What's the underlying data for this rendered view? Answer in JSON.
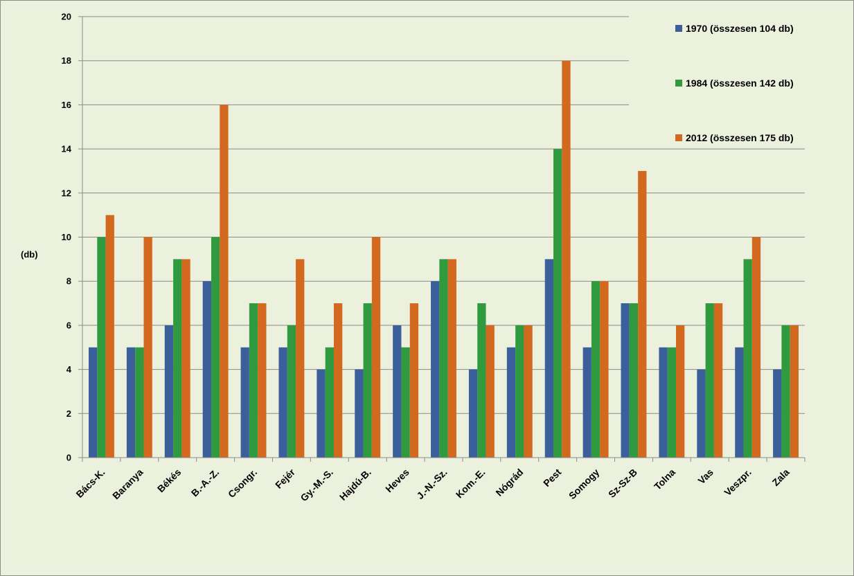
{
  "chart_data": {
    "type": "bar",
    "ylabel": "(db)",
    "ylim": [
      0,
      20
    ],
    "yticks": [
      0,
      2,
      4,
      6,
      8,
      10,
      12,
      14,
      16,
      18,
      20
    ],
    "grid": true,
    "legend_position": "top-right",
    "categories": [
      "Bács-K.",
      "Baranya",
      "Békés",
      "B.-A.-Z.",
      "Csongr.",
      "Fejér",
      "Gy.-M.-S.",
      "Hajdú-B.",
      "Heves",
      "J.-N.-Sz.",
      "Kom.-E.",
      "Nógrád",
      "Pest",
      "Somogy",
      "Sz-Sz-B",
      "Tolna",
      "Vas",
      "Veszpr.",
      "Zala"
    ],
    "series": [
      {
        "name": "1970 (összesen 104 db)",
        "color": "#3a5f9a",
        "values": [
          5,
          5,
          6,
          8,
          5,
          5,
          4,
          4,
          6,
          8,
          4,
          5,
          9,
          5,
          7,
          5,
          4,
          5,
          4
        ]
      },
      {
        "name": "1984 (összesen 142 db)",
        "color": "#2f9a3e",
        "values": [
          10,
          5,
          9,
          10,
          7,
          6,
          5,
          7,
          5,
          9,
          7,
          6,
          14,
          8,
          7,
          5,
          7,
          9,
          6
        ]
      },
      {
        "name": "2012 (összesen 175 db)",
        "color": "#d3681f",
        "values": [
          11,
          10,
          9,
          16,
          7,
          9,
          7,
          10,
          7,
          9,
          6,
          6,
          18,
          8,
          13,
          6,
          7,
          10,
          6
        ]
      }
    ]
  }
}
